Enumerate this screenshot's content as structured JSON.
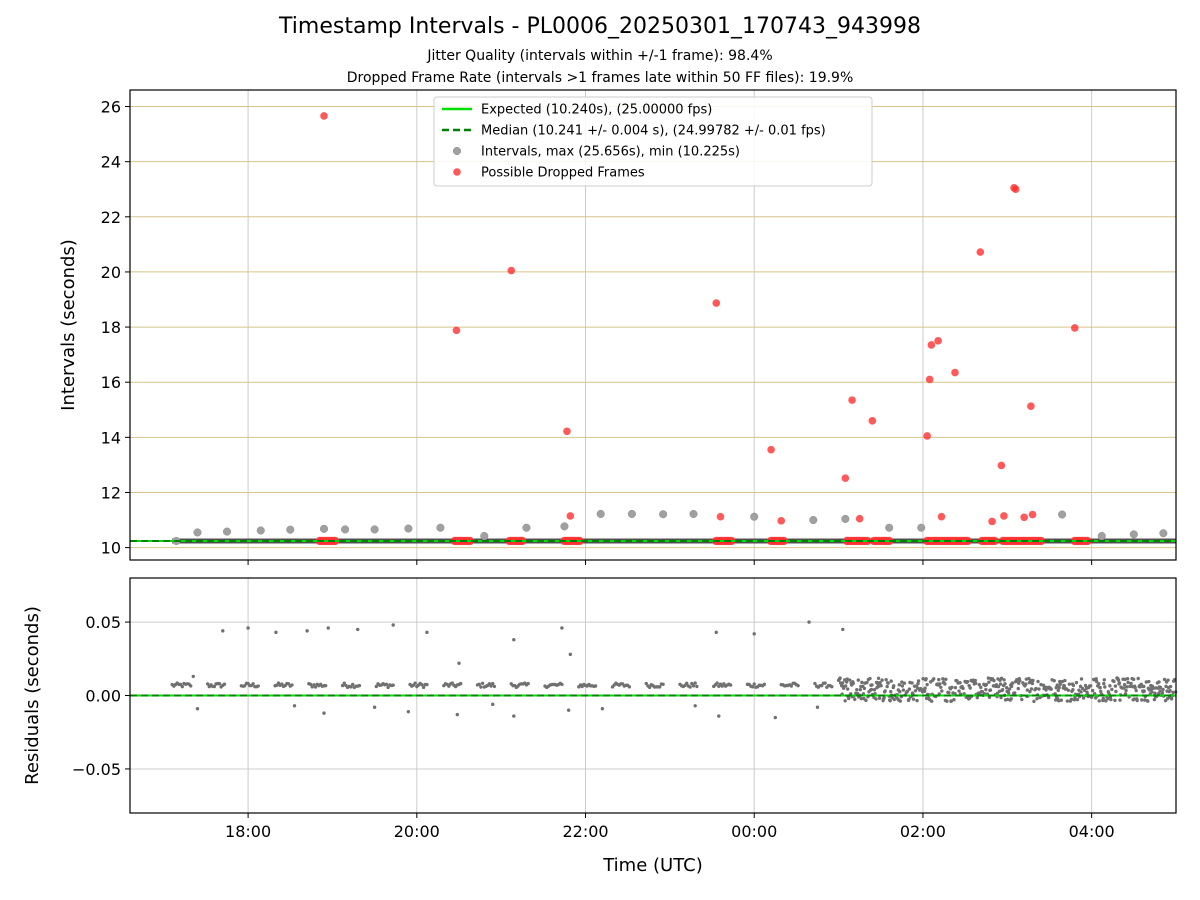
{
  "title": "Timestamp Intervals - PL0006_20250301_170743_943998",
  "subtitle_1": "Jitter Quality (intervals within +/-1 frame): 98.4%",
  "subtitle_2": "Dropped Frame Rate (intervals >1 frames late within 50 FF files): 19.9%",
  "colors": {
    "expected": "#00e000",
    "median": "#008000",
    "intervals": "#a0a0a0",
    "dropped": "#ff3030",
    "residuals": "#707070",
    "hgrid_top": "#d8c48a",
    "grid": "#cccccc"
  },
  "chart_data": [
    {
      "type": "scatter",
      "ylabel": "Intervals (seconds)",
      "ylim": [
        9.55,
        26.6
      ],
      "xlim_hours": [
        16.6,
        29.0
      ],
      "yticks": [
        10,
        12,
        14,
        16,
        18,
        20,
        22,
        24,
        26
      ],
      "grid": "horizontal",
      "legend_position": "top-center",
      "legend": [
        {
          "label": "Expected (10.240s), (25.00000 fps)",
          "style": "solid-line"
        },
        {
          "label": "Median (10.241 +/- 0.004 s), (24.99782 +/- 0.01 fps)",
          "style": "dashed-line"
        },
        {
          "label": "Intervals, max (25.656s), min (10.225s)",
          "style": "grey-dot"
        },
        {
          "label": "Possible Dropped Frames",
          "style": "red-dot"
        }
      ],
      "expected_interval": 10.24,
      "median_interval": 10.241,
      "series": [
        {
          "name": "Intervals, max (25.656s), min (10.225s)",
          "points": [
            [
              17.15,
              10.24
            ],
            [
              17.4,
              10.55
            ],
            [
              17.75,
              10.58
            ],
            [
              18.15,
              10.62
            ],
            [
              18.5,
              10.65
            ],
            [
              18.9,
              10.68
            ],
            [
              19.15,
              10.66
            ],
            [
              19.5,
              10.66
            ],
            [
              19.9,
              10.69
            ],
            [
              20.28,
              10.72
            ],
            [
              20.8,
              10.42
            ],
            [
              21.3,
              10.72
            ],
            [
              21.75,
              10.77
            ],
            [
              22.18,
              11.22
            ],
            [
              22.55,
              11.22
            ],
            [
              22.92,
              11.21
            ],
            [
              23.28,
              11.22
            ],
            [
              24.0,
              11.12
            ],
            [
              24.7,
              11.0
            ],
            [
              25.08,
              11.04
            ],
            [
              25.6,
              10.72
            ],
            [
              25.98,
              10.72
            ],
            [
              27.65,
              11.2
            ],
            [
              28.12,
              10.42
            ],
            [
              28.5,
              10.48
            ],
            [
              28.85,
              10.52
            ]
          ]
        },
        {
          "name": "Possible Dropped Frames",
          "points": [
            [
              18.9,
              25.66
            ],
            [
              20.47,
              17.88
            ],
            [
              21.12,
              20.05
            ],
            [
              21.78,
              14.22
            ],
            [
              21.82,
              11.15
            ],
            [
              23.55,
              18.87
            ],
            [
              23.6,
              11.12
            ],
            [
              24.2,
              13.55
            ],
            [
              24.32,
              10.97
            ],
            [
              25.08,
              12.52
            ],
            [
              25.16,
              15.35
            ],
            [
              25.25,
              11.05
            ],
            [
              25.4,
              14.6
            ],
            [
              26.05,
              14.05
            ],
            [
              26.08,
              16.1
            ],
            [
              26.1,
              17.35
            ],
            [
              26.18,
              17.5
            ],
            [
              26.22,
              11.12
            ],
            [
              26.38,
              16.35
            ],
            [
              26.68,
              20.72
            ],
            [
              26.82,
              10.95
            ],
            [
              26.93,
              12.98
            ],
            [
              26.96,
              11.15
            ],
            [
              27.08,
              23.05
            ],
            [
              27.1,
              23.0
            ],
            [
              27.2,
              11.1
            ],
            [
              27.28,
              15.13
            ],
            [
              27.3,
              11.2
            ],
            [
              27.8,
              17.97
            ]
          ]
        },
        {
          "name": "Possible Dropped Frames (baseline clusters)",
          "ranges": [
            [
              18.85,
              19.05
            ],
            [
              20.45,
              20.65
            ],
            [
              21.1,
              21.28
            ],
            [
              21.75,
              21.95
            ],
            [
              23.55,
              23.75
            ],
            [
              24.2,
              24.38
            ],
            [
              25.1,
              25.35
            ],
            [
              25.42,
              25.62
            ],
            [
              26.05,
              26.55
            ],
            [
              26.7,
              26.88
            ],
            [
              26.95,
              27.42
            ],
            [
              27.8,
              27.98
            ]
          ],
          "value": 10.24
        }
      ]
    },
    {
      "type": "scatter",
      "xlabel": "Time (UTC)",
      "ylabel": "Residuals (seconds)",
      "ylim": [
        -0.08,
        0.08
      ],
      "xlim_hours": [
        16.6,
        29.0
      ],
      "yticks": [
        0.05,
        0.0,
        -0.05
      ],
      "ytick_labels": [
        "0.05",
        "0.00",
        "−0.05"
      ],
      "xticks": [
        18,
        20,
        22,
        24,
        26,
        28
      ],
      "xtick_labels": [
        "18:00",
        "20:00",
        "22:00",
        "00:00",
        "02:00",
        "04:00"
      ],
      "grid": "both",
      "series": [
        {
          "name": "Residuals",
          "outliers": [
            [
              17.35,
              0.013
            ],
            [
              17.7,
              0.044
            ],
            [
              18.0,
              0.046
            ],
            [
              18.33,
              0.043
            ],
            [
              18.7,
              0.044
            ],
            [
              18.95,
              0.046
            ],
            [
              19.3,
              0.045
            ],
            [
              19.72,
              0.048
            ],
            [
              20.12,
              0.043
            ],
            [
              20.5,
              0.022
            ],
            [
              21.15,
              0.038
            ],
            [
              21.72,
              0.046
            ],
            [
              21.82,
              0.028
            ],
            [
              23.55,
              0.043
            ],
            [
              24.0,
              0.042
            ],
            [
              24.65,
              0.05
            ],
            [
              25.05,
              0.045
            ],
            [
              17.4,
              -0.009
            ],
            [
              18.55,
              -0.007
            ],
            [
              18.9,
              -0.012
            ],
            [
              19.5,
              -0.008
            ],
            [
              19.9,
              -0.011
            ],
            [
              20.48,
              -0.013
            ],
            [
              20.9,
              -0.006
            ],
            [
              21.15,
              -0.014
            ],
            [
              21.8,
              -0.01
            ],
            [
              22.2,
              -0.009
            ],
            [
              23.3,
              -0.007
            ],
            [
              23.58,
              -0.014
            ],
            [
              24.25,
              -0.015
            ],
            [
              24.75,
              -0.008
            ]
          ],
          "bands": [
            {
              "x_start": 17.1,
              "x_end": 25.0,
              "level": 0.007,
              "spread": 0.0015
            },
            {
              "x_start": 25.0,
              "x_end": 29.0,
              "level": 0.004,
              "spread": 0.008
            }
          ]
        }
      ]
    }
  ]
}
